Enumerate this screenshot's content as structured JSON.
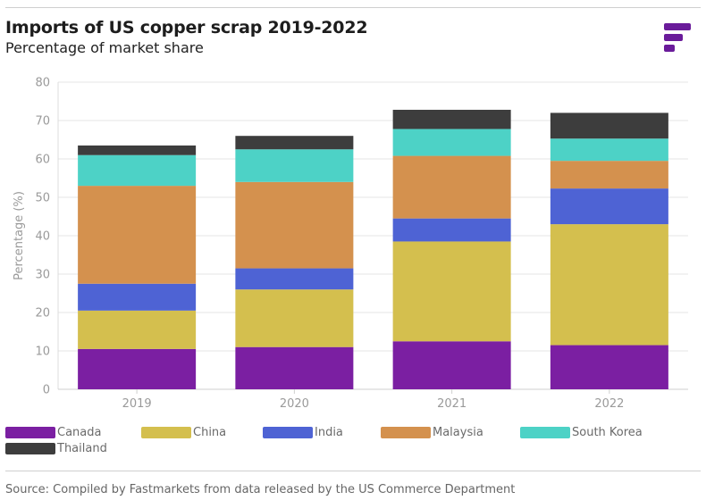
{
  "title": "Imports of US copper scrap 2019-2022",
  "subtitle": "Percentage of market share",
  "source": "Source: Compiled by Fastmarkets from data released by the US Commerce Department",
  "brand_color": "#6a1b9a",
  "logo_icon": "fastmarkets-logo-icon",
  "chart_data": {
    "type": "bar",
    "stacked": true,
    "title": "Imports of US copper scrap 2019-2022",
    "subtitle": "Percentage of market share",
    "xlabel": "",
    "ylabel": "Percentage (%)",
    "ylim": [
      0,
      80
    ],
    "yticks": [
      0,
      10,
      20,
      30,
      40,
      50,
      60,
      70,
      80
    ],
    "grid": true,
    "legend": "bottom",
    "categories": [
      "2019",
      "2020",
      "2021",
      "2022"
    ],
    "series": [
      {
        "name": "Canada",
        "color": "#7b1fa2",
        "values": [
          10.5,
          11,
          12.5,
          11.5
        ]
      },
      {
        "name": "China",
        "color": "#d4bf4e",
        "values": [
          10,
          15,
          26,
          31.5
        ]
      },
      {
        "name": "India",
        "color": "#4e63d4",
        "values": [
          7,
          5.5,
          6,
          9.3
        ]
      },
      {
        "name": "Malaysia",
        "color": "#d4914e",
        "values": [
          25.5,
          22.5,
          16.3,
          7.2
        ]
      },
      {
        "name": "South Korea",
        "color": "#4dd2c6",
        "values": [
          8,
          8.5,
          7,
          5.8
        ]
      },
      {
        "name": "Thailand",
        "color": "#3d3d3d",
        "values": [
          2.5,
          3.5,
          5,
          6.7
        ]
      }
    ]
  }
}
